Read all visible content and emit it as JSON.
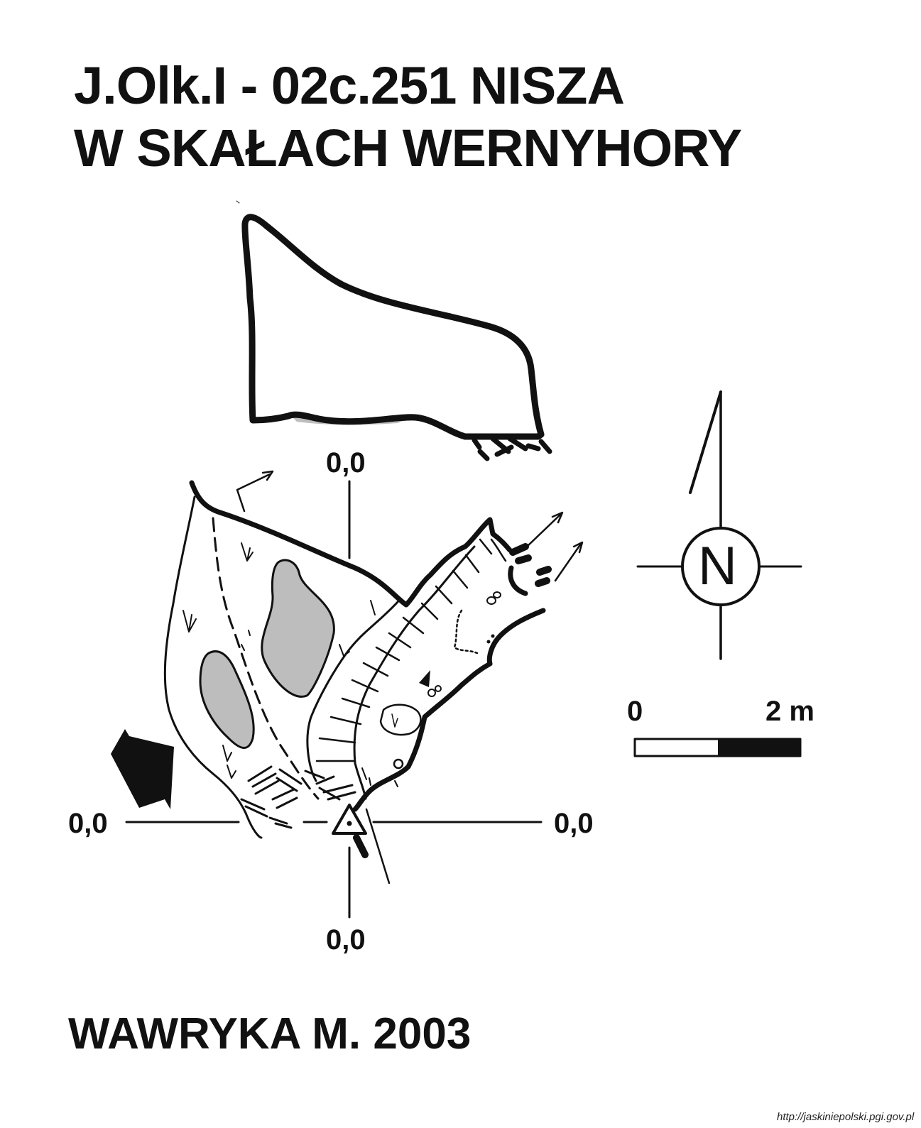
{
  "title": {
    "line1": "J.Olk.I - 02c.251  NISZA",
    "line2": "W SKAŁACH WERNYHORY"
  },
  "profile_labels": {
    "top": "0,0",
    "left": "0,0",
    "right": "0,0",
    "bottom": "0,0"
  },
  "north_arrow": {
    "label": "N"
  },
  "scale_bar": {
    "start_label": "0",
    "end_label": "2 m"
  },
  "author": "WAWRYKA M. 2003",
  "source": "http://jaskiniepolski.pgi.gov.pl",
  "colors": {
    "ink": "#111111",
    "fill_gray": "#bdbdbd",
    "paper": "#ffffff"
  }
}
